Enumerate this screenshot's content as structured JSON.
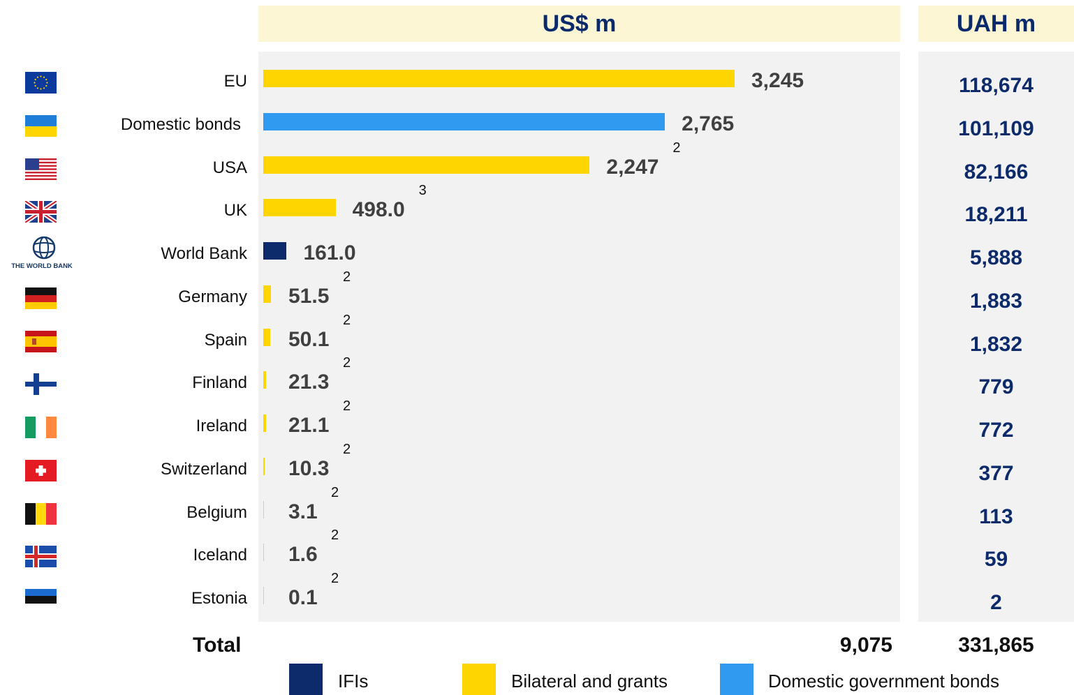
{
  "headers": {
    "usd": "US$ m",
    "uah": "UAH m"
  },
  "colors": {
    "ifis": "#0d2b6b",
    "bilateral": "#ffd500",
    "domestic": "#2f9af0"
  },
  "chart_data": {
    "type": "bar",
    "orientation": "horizontal",
    "categories": [
      "EU",
      "Domestic bonds",
      "USA",
      "UK",
      "World Bank",
      "Germany",
      "Spain",
      "Finland",
      "Ireland",
      "Switzerland",
      "Belgium",
      "Iceland",
      "Estonia"
    ],
    "rows": [
      {
        "label": "EU",
        "flag": "eu-flag-icon",
        "group": "bilateral",
        "usd": 3245,
        "usd_label": "3,245",
        "note": "",
        "uah": "118,674"
      },
      {
        "label": "Domestic bonds",
        "flag": "ukraine-flag-icon",
        "group": "domestic",
        "usd": 2765,
        "usd_label": "2,765",
        "note": "",
        "uah": "101,109"
      },
      {
        "label": "USA",
        "flag": "usa-flag-icon",
        "group": "bilateral",
        "usd": 2247,
        "usd_label": "2,247",
        "note": "2",
        "uah": "82,166"
      },
      {
        "label": "UK",
        "flag": "uk-flag-icon",
        "group": "bilateral",
        "usd": 498.0,
        "usd_label": "498.0",
        "note": "3",
        "uah": "18,211"
      },
      {
        "label": "World Bank",
        "flag": "world-bank-logo-icon",
        "group": "ifis",
        "usd": 161.0,
        "usd_label": "161.0",
        "note": "",
        "uah": "5,888"
      },
      {
        "label": "Germany",
        "flag": "germany-flag-icon",
        "group": "bilateral",
        "usd": 51.5,
        "usd_label": "51.5",
        "note": "2",
        "uah": "1,883"
      },
      {
        "label": "Spain",
        "flag": "spain-flag-icon",
        "group": "bilateral",
        "usd": 50.1,
        "usd_label": "50.1",
        "note": "2",
        "uah": "1,832"
      },
      {
        "label": "Finland",
        "flag": "finland-flag-icon",
        "group": "bilateral",
        "usd": 21.3,
        "usd_label": "21.3",
        "note": "2",
        "uah": "779"
      },
      {
        "label": "Ireland",
        "flag": "ireland-flag-icon",
        "group": "bilateral",
        "usd": 21.1,
        "usd_label": "21.1",
        "note": "2",
        "uah": "772"
      },
      {
        "label": "Switzerland",
        "flag": "switzerland-flag-icon",
        "group": "bilateral",
        "usd": 10.3,
        "usd_label": "10.3",
        "note": "2",
        "uah": "377"
      },
      {
        "label": "Belgium",
        "flag": "belgium-flag-icon",
        "group": "bilateral",
        "usd": 3.1,
        "usd_label": "3.1",
        "note": "2",
        "uah": "113"
      },
      {
        "label": "Iceland",
        "flag": "iceland-flag-icon",
        "group": "bilateral",
        "usd": 1.6,
        "usd_label": "1.6",
        "note": "2",
        "uah": "59"
      },
      {
        "label": "Estonia",
        "flag": "estonia-flag-icon",
        "group": "bilateral",
        "usd": 0.1,
        "usd_label": "0.1",
        "note": "2",
        "uah": "2"
      }
    ],
    "total_label": "Total",
    "total_usd": "9,075",
    "total_uah": "331,865",
    "legend": [
      {
        "label": "IFIs",
        "group": "ifis"
      },
      {
        "label": "Bilateral and grants",
        "group": "bilateral"
      },
      {
        "label": "Domestic government bonds",
        "group": "domestic"
      }
    ],
    "legend_position": "bottom"
  }
}
